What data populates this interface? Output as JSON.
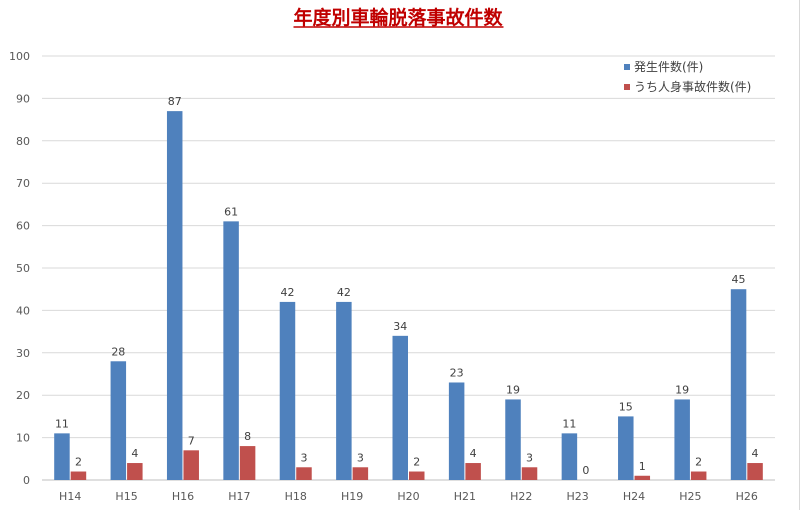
{
  "chart_data": {
    "type": "bar",
    "title": "年度別車輪脱落事故件数",
    "xlabel": "",
    "ylabel": "",
    "categories": [
      "H14",
      "H15",
      "H16",
      "H17",
      "H18",
      "H19",
      "H20",
      "H21",
      "H22",
      "H23",
      "H24",
      "H25",
      "H26"
    ],
    "series": [
      {
        "name": "発生件数(件)",
        "color": "#4f81bd",
        "values": [
          11,
          28,
          87,
          61,
          42,
          42,
          34,
          23,
          19,
          11,
          15,
          19,
          45
        ]
      },
      {
        "name": "うち人身事故件数(件)",
        "color": "#c0504d",
        "values": [
          2,
          4,
          7,
          8,
          3,
          3,
          2,
          4,
          3,
          0,
          1,
          2,
          4
        ]
      }
    ],
    "ylim": [
      0,
      100
    ],
    "yticks": [
      0,
      10,
      20,
      30,
      40,
      50,
      60,
      70,
      80,
      90,
      100
    ],
    "grid": true,
    "legend": "top-right",
    "data_labels": true
  }
}
